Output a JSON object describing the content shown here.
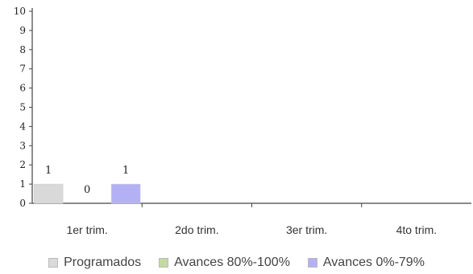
{
  "chart_data": {
    "type": "bar",
    "title": "",
    "xlabel": "",
    "ylabel": "",
    "categories": [
      "1er trim.",
      "2do trim.",
      "3er trim.",
      "4to trim."
    ],
    "series": [
      {
        "name": "Programados",
        "color": "#d9d9d9",
        "values": [
          1,
          null,
          null,
          null
        ]
      },
      {
        "name": "Avances 80%-100%",
        "color": "#c5d9a0",
        "values": [
          0,
          null,
          null,
          null
        ]
      },
      {
        "name": "Avances 0%-79%",
        "color": "#b4b0f5",
        "values": [
          1,
          null,
          null,
          null
        ]
      }
    ],
    "ylim": [
      0,
      10
    ],
    "yticks": [
      "0",
      "1",
      "2",
      "3",
      "4",
      "5",
      "6",
      "7",
      "8",
      "9",
      "10"
    ],
    "grid": false,
    "legend_position": "bottom"
  }
}
